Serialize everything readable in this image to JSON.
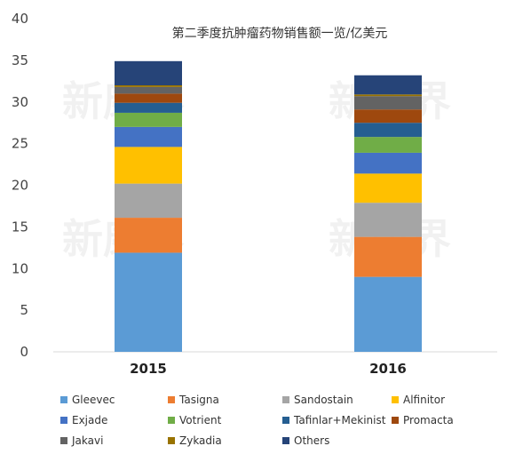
{
  "chart_data": {
    "type": "bar",
    "stacked": true,
    "title": "第二季度抗肿瘤药物销售额一览/亿美元",
    "categories": [
      "2015",
      "2016"
    ],
    "ylim": [
      0,
      40
    ],
    "yticks": [
      0,
      5,
      10,
      15,
      20,
      25,
      30,
      35,
      40
    ],
    "grid": false,
    "legend_position": "bottom",
    "watermark": "新康界",
    "series": [
      {
        "name": "Gleevec",
        "color": "#5B9BD5",
        "values": [
          11.9,
          9.0
        ]
      },
      {
        "name": "Tasigna",
        "color": "#ED7D31",
        "values": [
          4.2,
          4.8
        ]
      },
      {
        "name": "Sandostain",
        "color": "#A5A5A5",
        "values": [
          4.1,
          4.1
        ]
      },
      {
        "name": "Alfinitor",
        "color": "#FFC000",
        "values": [
          4.4,
          3.5
        ]
      },
      {
        "name": "Exjade",
        "color": "#4472C4",
        "values": [
          2.4,
          2.5
        ]
      },
      {
        "name": "Votrient",
        "color": "#70AD47",
        "values": [
          1.7,
          1.9
        ]
      },
      {
        "name": "Tafinlar+Mekinist",
        "color": "#255E91",
        "values": [
          1.2,
          1.7
        ]
      },
      {
        "name": "Promacta",
        "color": "#9E480E",
        "values": [
          1.1,
          1.6
        ]
      },
      {
        "name": "Jakavi",
        "color": "#636363",
        "values": [
          0.8,
          1.6
        ]
      },
      {
        "name": "Zykadia",
        "color": "#997300",
        "values": [
          0.2,
          0.2
        ]
      },
      {
        "name": "Others",
        "color": "#264478",
        "values": [
          2.9,
          2.3
        ]
      }
    ]
  }
}
